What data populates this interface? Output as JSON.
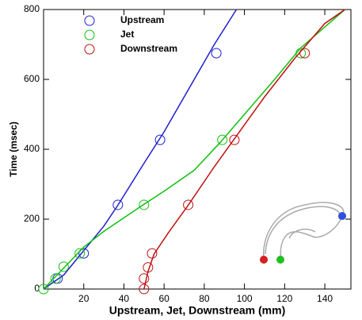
{
  "chart_data": {
    "type": "line",
    "x_label": "Upstream, Jet, Downstream (mm)",
    "y_label": "Time (msec)",
    "xlim": [
      0,
      153
    ],
    "ylim": [
      0,
      800
    ],
    "xticks": [
      20,
      40,
      60,
      80,
      100,
      120,
      140
    ],
    "yticks": [
      0,
      200,
      400,
      600,
      800
    ],
    "series": [
      {
        "name": "Upstream",
        "color": "#1f1fd0",
        "line": {
          "x": [
            0,
            10,
            20,
            30,
            37,
            50,
            60,
            75,
            85,
            96
          ],
          "y": [
            0,
            40,
            110,
            180,
            240,
            360,
            450,
            600,
            700,
            800
          ]
        },
        "points": {
          "x": [
            7,
            20,
            37,
            58,
            86
          ],
          "y": [
            30,
            102,
            241,
            427,
            675
          ]
        }
      },
      {
        "name": "Jet",
        "color": "#10c010",
        "line": {
          "x": [
            0,
            10,
            20,
            30,
            48,
            60,
            75,
            88,
            100,
            115,
            128,
            150
          ],
          "y": [
            0,
            60,
            120,
            165,
            235,
            280,
            340,
            420,
            500,
            600,
            690,
            800
          ]
        },
        "points": {
          "x": [
            0,
            6,
            10,
            18,
            50,
            89,
            128
          ],
          "y": [
            0,
            30,
            64,
            102,
            241,
            427,
            675
          ]
        }
      },
      {
        "name": "Downstream",
        "color": "#c01010",
        "line": {
          "x": [
            50,
            52,
            55,
            62,
            72,
            85,
            95,
            110,
            125,
            140,
            150
          ],
          "y": [
            0,
            50,
            100,
            160,
            240,
            350,
            430,
            550,
            660,
            760,
            800
          ]
        },
        "points": {
          "x": [
            50,
            50,
            52,
            54,
            72,
            95,
            130
          ],
          "y": [
            0,
            30,
            62,
            102,
            241,
            427,
            675
          ]
        }
      }
    ]
  }
}
